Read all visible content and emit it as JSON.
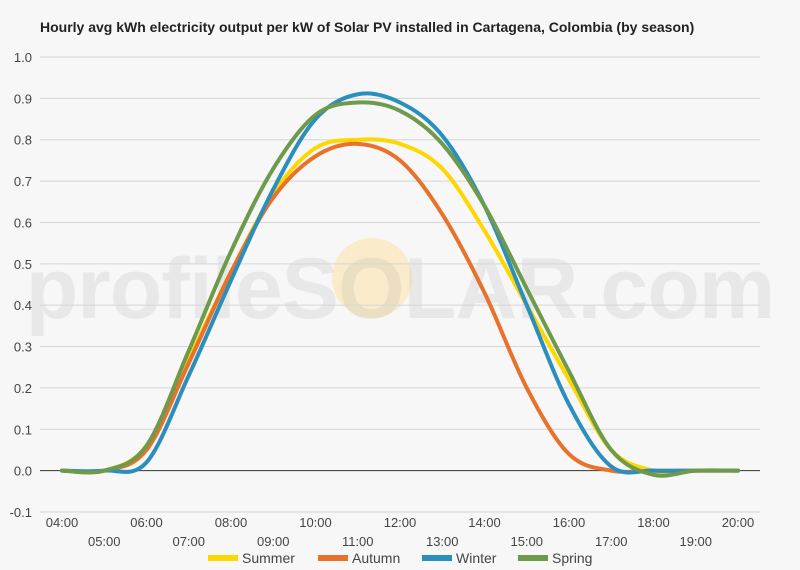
{
  "chart_data": {
    "type": "line",
    "title": "Hourly avg kWh electricity output per kW of Solar PV installed in Cartagena, Colombia (by season)",
    "xlabel": "",
    "ylabel": "",
    "ylim": [
      -0.1,
      1.0
    ],
    "yticks": [
      "-0.1",
      "0.0",
      "0.1",
      "0.2",
      "0.3",
      "0.4",
      "0.5",
      "0.6",
      "0.7",
      "0.8",
      "0.9",
      "1.0"
    ],
    "x": [
      "04:00",
      "05:00",
      "06:00",
      "07:00",
      "08:00",
      "09:00",
      "10:00",
      "11:00",
      "12:00",
      "13:00",
      "14:00",
      "15:00",
      "16:00",
      "17:00",
      "18:00",
      "19:00",
      "20:00"
    ],
    "legend_position": "bottom",
    "grid": true,
    "series": [
      {
        "name": "Summer",
        "color": "#ffd700",
        "values": [
          0,
          0,
          0.06,
          0.27,
          0.48,
          0.67,
          0.78,
          0.8,
          0.79,
          0.73,
          0.58,
          0.4,
          0.22,
          0.05,
          0.0,
          0,
          0
        ]
      },
      {
        "name": "Autumn",
        "color": "#e8722c",
        "values": [
          0,
          0,
          0.05,
          0.26,
          0.48,
          0.66,
          0.76,
          0.79,
          0.75,
          0.62,
          0.43,
          0.2,
          0.04,
          0.0,
          0,
          0,
          0
        ]
      },
      {
        "name": "Winter",
        "color": "#2b8fbd",
        "values": [
          0,
          0,
          0.02,
          0.23,
          0.46,
          0.68,
          0.85,
          0.91,
          0.89,
          0.81,
          0.64,
          0.4,
          0.16,
          0.01,
          0,
          0,
          0
        ]
      },
      {
        "name": "Spring",
        "color": "#6e9a4c",
        "values": [
          0,
          0,
          0.06,
          0.29,
          0.53,
          0.73,
          0.86,
          0.89,
          0.87,
          0.79,
          0.64,
          0.44,
          0.24,
          0.05,
          -0.01,
          0,
          0
        ]
      }
    ],
    "watermark": "profileSOLAR.com"
  }
}
